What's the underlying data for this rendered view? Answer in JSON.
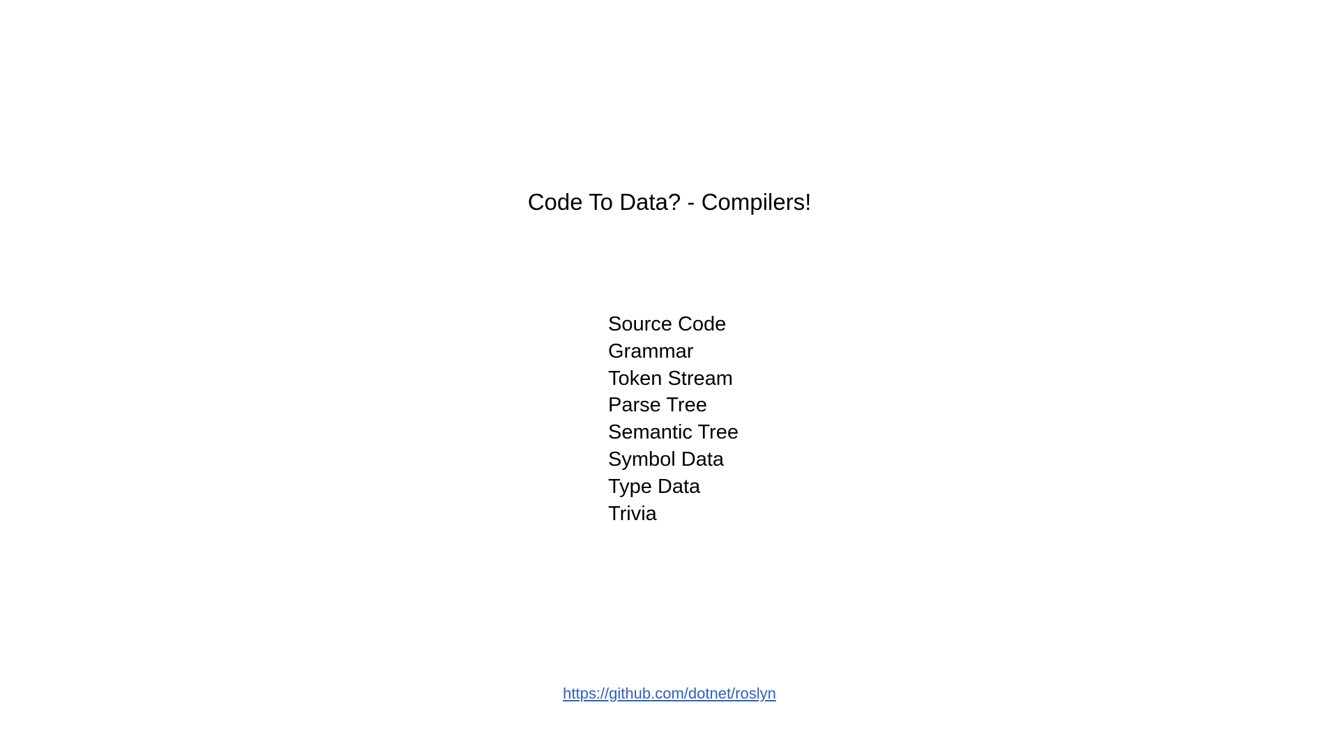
{
  "slide": {
    "title": "Code To Data? - Compilers!",
    "items": [
      "Source Code",
      "Grammar",
      "Token Stream",
      "Parse Tree",
      "Semantic Tree",
      "Symbol Data",
      "Type Data",
      "Trivia"
    ],
    "link": {
      "text": "https://github.com/dotnet/roslyn"
    }
  },
  "colors": {
    "background": "#ffffff",
    "text": "#000000",
    "link": "#2f5fbf"
  }
}
